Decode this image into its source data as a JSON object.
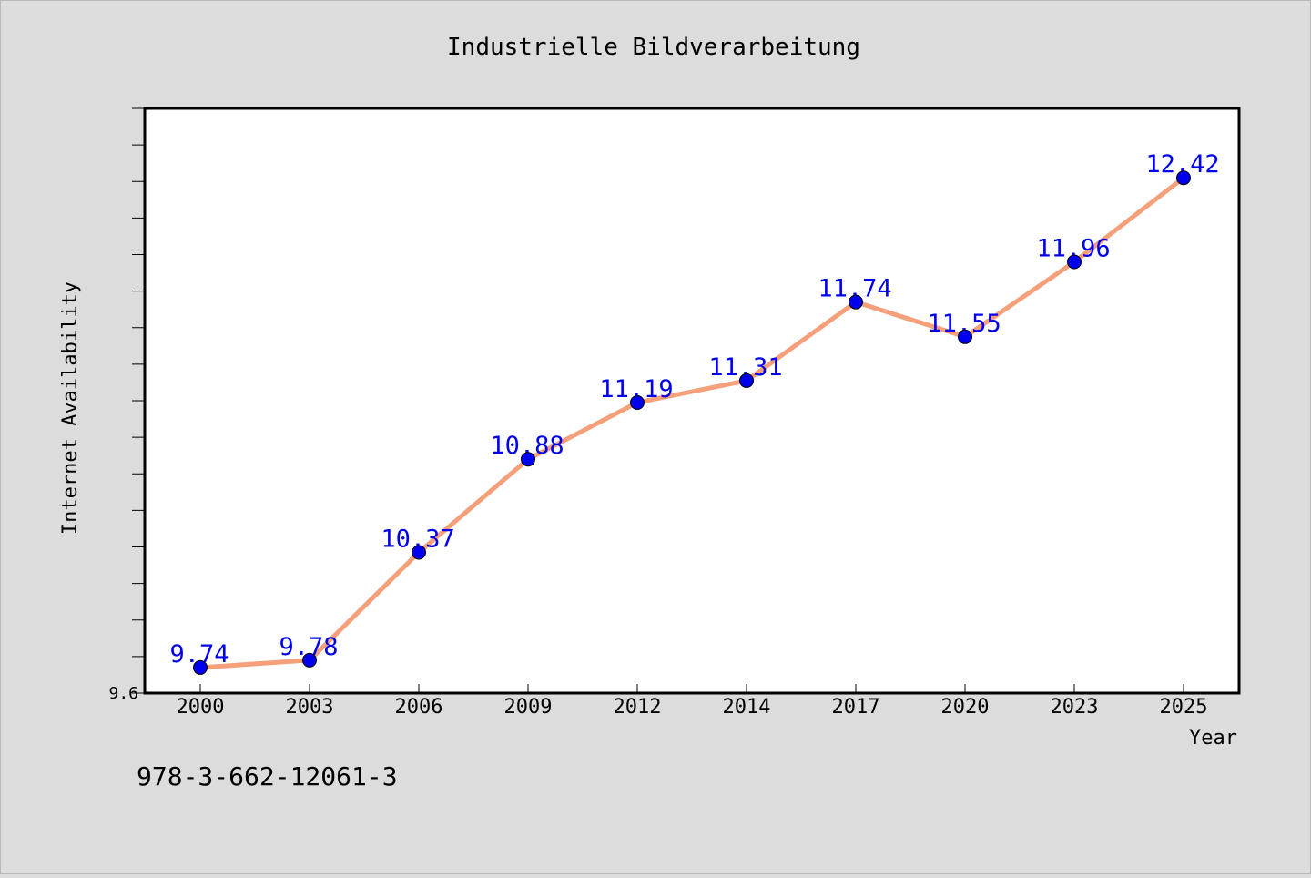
{
  "chart_data": {
    "type": "line",
    "title": "Industrielle Bildverarbeitung",
    "xlabel": "Year",
    "ylabel": "Internet Availability",
    "categories": [
      "2000",
      "2003",
      "2006",
      "2009",
      "2012",
      "2014",
      "2017",
      "2020",
      "2023",
      "2025"
    ],
    "series": [
      {
        "values": [
          9.74,
          9.78,
          10.37,
          10.88,
          11.19,
          11.31,
          11.74,
          11.55,
          11.96,
          12.42
        ]
      }
    ],
    "ylim": [
      9.6,
      12.8
    ],
    "y_tick_labels": [
      "9.6"
    ],
    "grid": false,
    "legend": "none",
    "colors": {
      "line": "#f4a07a",
      "marker": "#0000ee",
      "data_label": "#0000ee",
      "plot_background": "#ffffff",
      "page_background": "#dcdcdc"
    }
  },
  "footer": {
    "isbn": "978-3-662-12061-3"
  }
}
